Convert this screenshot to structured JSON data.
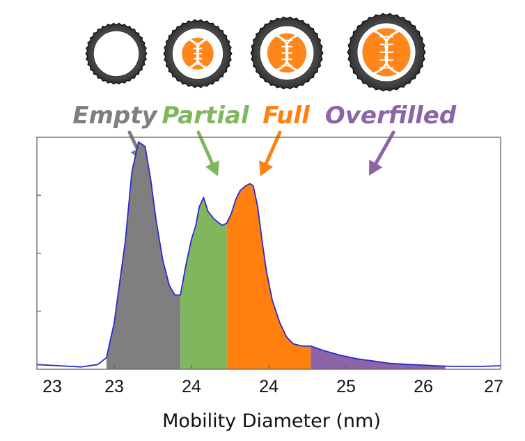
{
  "chart_data": {
    "type": "area",
    "xlabel": "Mobility Diameter (nm)",
    "ylabel": "",
    "x_tick_labels": [
      "23",
      "23",
      "24",
      "24",
      "25",
      "26",
      "27"
    ],
    "xlim": [
      22.8,
      27.0
    ],
    "ylim": [
      0,
      1.0
    ],
    "yticks": [
      0.25,
      0.5,
      0.75
    ],
    "y_tick_labels_visible": false,
    "curve_color": "#2a2ad0",
    "categories": [
      {
        "label": "Empty",
        "color": "#7f7f7f",
        "from": 23.43,
        "to": 24.1,
        "icon": "empty-capsid-icon"
      },
      {
        "label": "Partial",
        "color": "#80b75e",
        "from": 24.1,
        "to": 24.52,
        "icon": "partial-capsid-icon"
      },
      {
        "label": "Full",
        "color": "#ff7f0f",
        "from": 24.52,
        "to": 25.28,
        "icon": "full-capsid-icon"
      },
      {
        "label": "Overfilled",
        "color": "#8c64a8",
        "from": 25.28,
        "to": 26.5,
        "icon": "overfilled-capsid-icon"
      }
    ],
    "series": [
      {
        "x": [
          22.8,
          23.0,
          23.2,
          23.35,
          23.43,
          23.5,
          23.6,
          23.66,
          23.72,
          23.78,
          23.83,
          23.88,
          23.94,
          24.0,
          24.05,
          24.1,
          24.15,
          24.2,
          24.24,
          24.27,
          24.31,
          24.35,
          24.4,
          24.45,
          24.48,
          24.52,
          24.56,
          24.6,
          24.64,
          24.69,
          24.73,
          24.76,
          24.8,
          24.84,
          24.88,
          24.93,
          25.0,
          25.06,
          25.12,
          25.2,
          25.28,
          25.4,
          25.55,
          25.7,
          25.85,
          26.0,
          26.2,
          26.4,
          26.6,
          26.8,
          27.0
        ],
        "y": [
          0.02,
          0.015,
          0.01,
          0.02,
          0.05,
          0.2,
          0.55,
          0.85,
          0.98,
          0.96,
          0.82,
          0.64,
          0.47,
          0.36,
          0.32,
          0.32,
          0.45,
          0.56,
          0.62,
          0.7,
          0.74,
          0.68,
          0.65,
          0.63,
          0.62,
          0.63,
          0.67,
          0.73,
          0.77,
          0.79,
          0.8,
          0.79,
          0.7,
          0.55,
          0.42,
          0.3,
          0.2,
          0.14,
          0.11,
          0.1,
          0.1,
          0.08,
          0.06,
          0.045,
          0.035,
          0.025,
          0.02,
          0.015,
          0.012,
          0.012,
          0.015
        ]
      }
    ]
  }
}
